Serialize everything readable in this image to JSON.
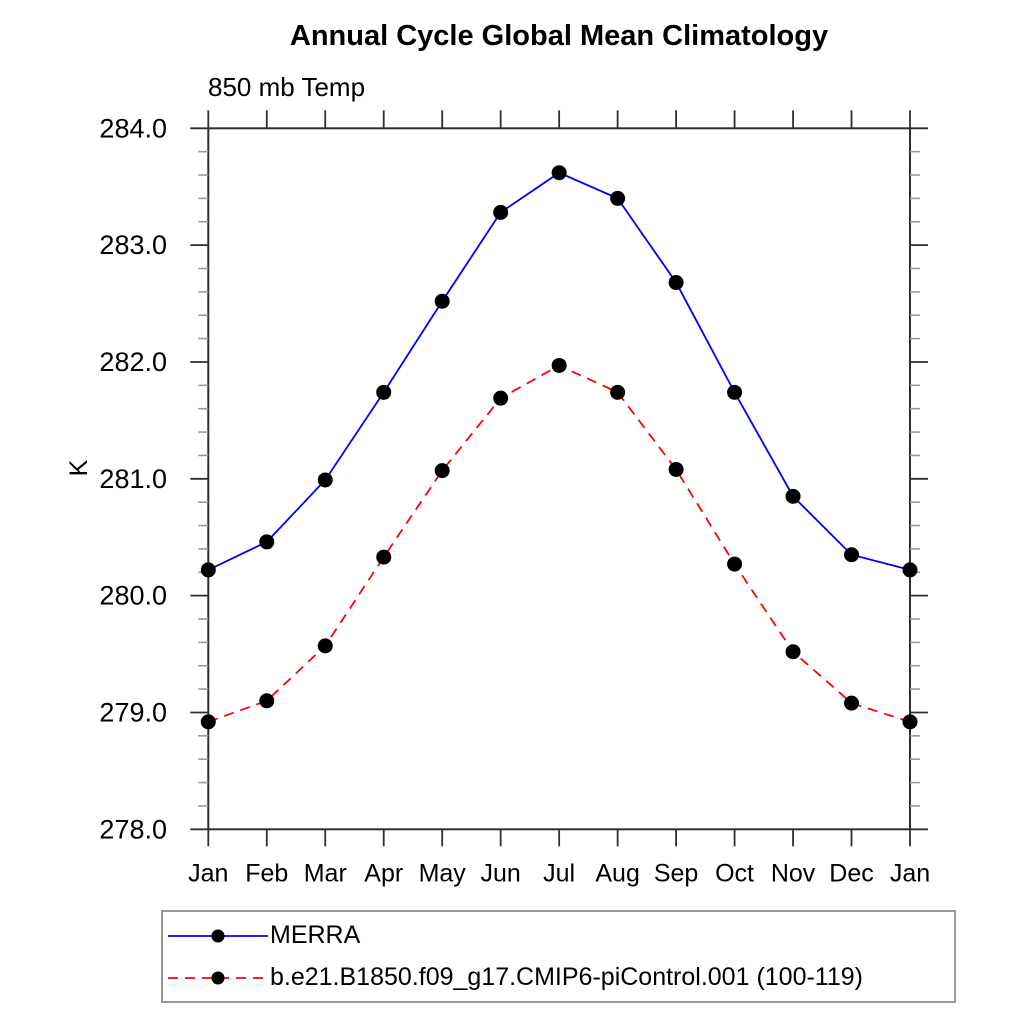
{
  "title": "Annual Cycle Global Mean Climatology",
  "subtitle": "850 mb Temp",
  "chart_data": {
    "type": "line",
    "categories": [
      "Jan",
      "Feb",
      "Mar",
      "Apr",
      "May",
      "Jun",
      "Jul",
      "Aug",
      "Sep",
      "Oct",
      "Nov",
      "Dec",
      "Jan"
    ],
    "series": [
      {
        "name": "MERRA",
        "color": "#0000ff",
        "line_style": "solid",
        "marker": "filled-circle",
        "marker_color": "#000000",
        "values": [
          280.22,
          280.46,
          280.99,
          281.74,
          282.52,
          283.28,
          283.62,
          283.4,
          282.68,
          281.74,
          280.85,
          280.35,
          280.22
        ]
      },
      {
        "name": "b.e21.B1850.f09_g17.CMIP6-piControl.001 (100-119)",
        "color": "#ff0000",
        "line_style": "dashed",
        "marker": "filled-circle",
        "marker_color": "#000000",
        "values": [
          278.92,
          279.1,
          279.57,
          280.33,
          281.07,
          281.69,
          281.97,
          281.74,
          281.08,
          280.27,
          279.52,
          279.08,
          278.92
        ]
      }
    ],
    "xlabel": "",
    "ylabel": "K",
    "ylim": [
      278.0,
      284.0
    ],
    "ytick_step": 1.0,
    "yminor_step": 0.2,
    "ytick_labels": [
      "278.0",
      "279.0",
      "280.0",
      "281.0",
      "282.0",
      "283.0",
      "284.0"
    ],
    "grid": false,
    "legend_position": "bottom-left"
  }
}
